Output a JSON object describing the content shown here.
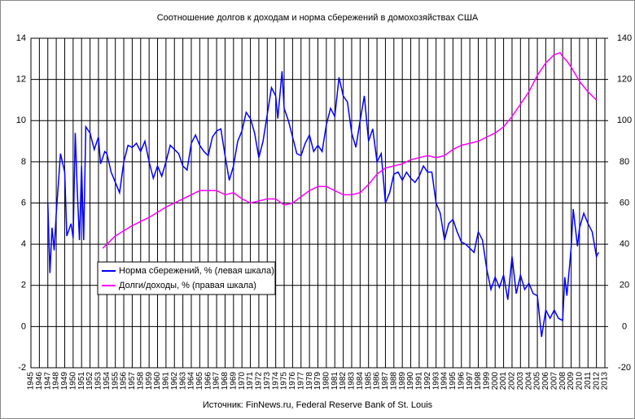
{
  "chart_data": {
    "type": "line",
    "title": "Соотношение долгов к доходам и норма сбережений в домохозяйствах США",
    "source": "Источник: FinNews.ru, Federal Reserve Bank of St. Louis",
    "grid": true,
    "legend": "left",
    "xlim": [
      1945,
      2013
    ],
    "xticks": [
      1945,
      1946,
      1947,
      1948,
      1949,
      1950,
      1951,
      1952,
      1953,
      1954,
      1955,
      1956,
      1957,
      1958,
      1959,
      1960,
      1961,
      1962,
      1963,
      1964,
      1965,
      1966,
      1967,
      1968,
      1969,
      1970,
      1971,
      1972,
      1973,
      1974,
      1975,
      1976,
      1977,
      1978,
      1979,
      1980,
      1981,
      1982,
      1983,
      1984,
      1985,
      1986,
      1987,
      1988,
      1989,
      1990,
      1991,
      1992,
      1993,
      1994,
      1995,
      1996,
      1997,
      1998,
      1999,
      2000,
      2001,
      2002,
      2003,
      2004,
      2005,
      2006,
      2007,
      2008,
      2009,
      2010,
      2011,
      2012,
      2013
    ],
    "ylim": [
      -2,
      14
    ],
    "yticks": [
      -2,
      0,
      2,
      4,
      6,
      8,
      10,
      12,
      14
    ],
    "y2lim": [
      -20,
      140
    ],
    "y2ticks": [
      -20,
      0,
      20,
      40,
      60,
      80,
      100,
      120,
      140
    ],
    "series": [
      {
        "name": "Норма сбережений, % (левая шкала)",
        "color": "#0000ff",
        "axis": "y",
        "x": [
          1947,
          1947.25,
          1947.5,
          1947.75,
          1948,
          1948.5,
          1949,
          1949.25,
          1949.75,
          1950,
          1950.25,
          1950.5,
          1950.75,
          1951,
          1951.25,
          1951.5,
          1952,
          1952.5,
          1953,
          1953.25,
          1953.75,
          1954,
          1954.5,
          1955,
          1955.5,
          1956,
          1956.5,
          1957,
          1957.5,
          1958,
          1958.5,
          1959,
          1959.5,
          1960,
          1960.5,
          1961,
          1961.5,
          1962,
          1962.5,
          1963,
          1963.5,
          1964,
          1964.5,
          1965,
          1965.5,
          1966,
          1966.5,
          1967,
          1967.5,
          1968,
          1968.5,
          1969,
          1969.5,
          1970,
          1970.5,
          1971,
          1971.5,
          1972,
          1972.5,
          1973,
          1973.5,
          1974,
          1974.25,
          1974.75,
          1975,
          1975.5,
          1976,
          1976.5,
          1977,
          1977.5,
          1978,
          1978.5,
          1979,
          1979.5,
          1980,
          1980.5,
          1981,
          1981.5,
          1982,
          1982.5,
          1983,
          1983.5,
          1984,
          1984.5,
          1985,
          1985.5,
          1986,
          1986.5,
          1987,
          1987.5,
          1988,
          1988.5,
          1989,
          1989.5,
          1990,
          1990.5,
          1991,
          1991.5,
          1992,
          1992.5,
          1993,
          1993.5,
          1994,
          1994.5,
          1995,
          1995.5,
          1996,
          1996.5,
          1997,
          1997.5,
          1998,
          1998.5,
          1999,
          1999.5,
          2000,
          2000.5,
          2001,
          2001.5,
          2002,
          2002.5,
          2003,
          2003.5,
          2004,
          2004.5,
          2005,
          2005.5,
          2006,
          2006.5,
          2007,
          2007.5,
          2008,
          2008.25,
          2008.5,
          2009,
          2009.25,
          2009.75,
          2010,
          2010.5,
          2011,
          2011.5,
          2012,
          2012.25
        ],
        "values": [
          6.0,
          2.6,
          4.8,
          3.7,
          5.5,
          8.4,
          7.5,
          4.4,
          5.0,
          4.3,
          9.4,
          6.5,
          4.2,
          7.8,
          4.2,
          9.7,
          9.4,
          8.6,
          9.2,
          7.9,
          8.5,
          8.4,
          7.5,
          7.0,
          6.5,
          8.0,
          8.8,
          8.7,
          8.9,
          8.5,
          9.0,
          8.0,
          7.2,
          7.8,
          7.3,
          8.0,
          8.8,
          8.6,
          8.4,
          7.8,
          7.6,
          8.9,
          9.3,
          8.8,
          8.5,
          8.3,
          9.2,
          9.5,
          9.6,
          8.3,
          7.1,
          7.8,
          9.0,
          9.5,
          10.4,
          10.1,
          9.4,
          8.2,
          9.0,
          10.3,
          11.6,
          11.2,
          10.1,
          12.4,
          10.6,
          10.0,
          9.2,
          8.4,
          8.3,
          8.9,
          9.3,
          8.5,
          8.8,
          8.5,
          9.8,
          10.6,
          10.2,
          12.1,
          11.2,
          10.9,
          9.4,
          8.7,
          10.0,
          11.2,
          9.0,
          9.6,
          8.0,
          8.4,
          6.0,
          6.5,
          7.4,
          7.5,
          7.1,
          7.5,
          7.2,
          7.0,
          7.3,
          7.8,
          7.5,
          7.5,
          6.0,
          5.5,
          4.2,
          5.0,
          5.2,
          4.6,
          4.1,
          4.0,
          3.8,
          3.6,
          4.6,
          4.2,
          2.8,
          1.8,
          2.4,
          1.9,
          2.5,
          1.3,
          3.4,
          1.6,
          2.5,
          1.8,
          2.1,
          1.6,
          1.5,
          -0.5,
          0.8,
          0.4,
          0.8,
          0.4,
          0.3,
          2.4,
          1.5,
          3.8,
          5.7,
          3.9,
          4.8,
          5.5,
          5.0,
          4.6,
          3.4,
          3.6
        ]
      },
      {
        "name": "Долги/доходы, % (правая шкала)",
        "color": "#ff00ff",
        "axis": "y2",
        "x": [
          1953.5,
          1955,
          1957,
          1959,
          1961,
          1963,
          1965,
          1967,
          1968,
          1969,
          1970,
          1971,
          1972,
          1973,
          1974,
          1975,
          1976,
          1977,
          1978,
          1979,
          1980,
          1981,
          1982,
          1983,
          1984,
          1985,
          1986,
          1987,
          1988,
          1989,
          1990,
          1991,
          1992,
          1993,
          1994,
          1995,
          1996,
          1997,
          1998,
          1999,
          2000,
          2001,
          2002,
          2003,
          2004,
          2005,
          2006,
          2007,
          2007.7,
          2008,
          2008.5,
          2009,
          2010,
          2011,
          2012
        ],
        "values": [
          38,
          44,
          49,
          53,
          58,
          62,
          66,
          66,
          64,
          65,
          62,
          60,
          61,
          62,
          62,
          59,
          60,
          63,
          66,
          68,
          68,
          66,
          64,
          64,
          65,
          69,
          74,
          77,
          78,
          79,
          81,
          82,
          83,
          82,
          83,
          86,
          88,
          89,
          90,
          92,
          94,
          97,
          102,
          108,
          114,
          122,
          128,
          132,
          133,
          131,
          129,
          126,
          119,
          114,
          110
        ]
      }
    ]
  }
}
